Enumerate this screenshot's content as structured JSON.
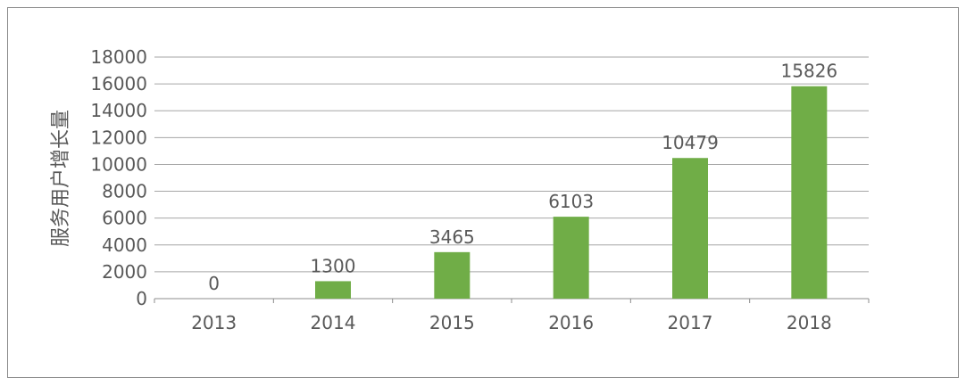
{
  "chart_data": {
    "type": "bar",
    "title": "",
    "xlabel": "",
    "ylabel": "服务用户增长量",
    "categories": [
      "2013",
      "2014",
      "2015",
      "2016",
      "2017",
      "2018"
    ],
    "values": [
      0,
      1300,
      3465,
      6103,
      10479,
      15826
    ],
    "data_labels": [
      "0",
      "1300",
      "3465",
      "6103",
      "10479",
      "15826"
    ],
    "ylim": [
      0,
      18000
    ],
    "yticks": [
      0,
      2000,
      4000,
      6000,
      8000,
      10000,
      12000,
      14000,
      16000,
      18000
    ],
    "grid": true,
    "legend": "none",
    "colors": {
      "bar": "#70AD47",
      "text": "#595959",
      "grid": "#A6A6A6"
    }
  }
}
